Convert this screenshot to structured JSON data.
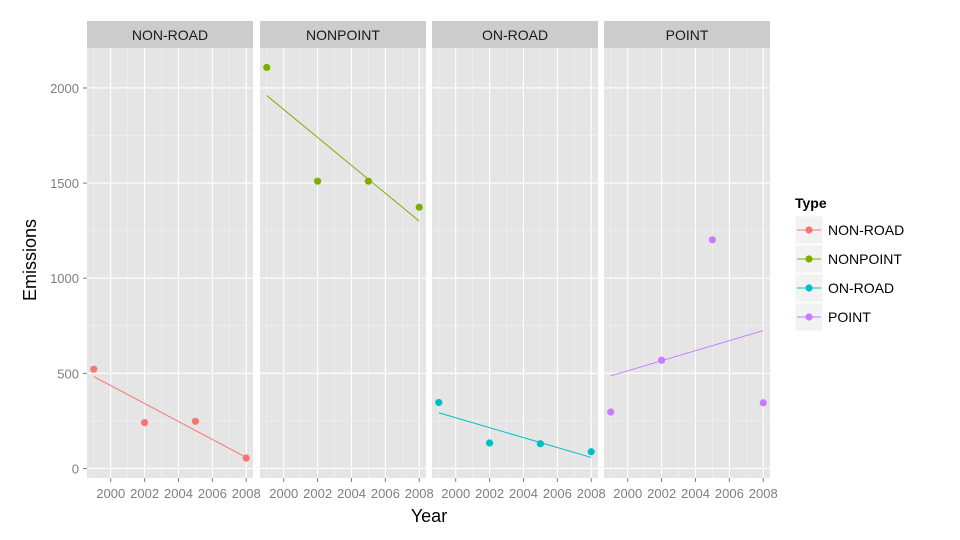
{
  "chart_data": {
    "type": "scatter",
    "facet_by": "Type",
    "xlabel": "Year",
    "ylabel": "Emissions",
    "xlim": [
      1998.6,
      2008.4
    ],
    "ylim": [
      -50,
      2210
    ],
    "x_ticks": [
      2000,
      2002,
      2004,
      2006,
      2008
    ],
    "x_tick_labels": [
      "2000",
      "2002",
      "2004",
      "2006",
      "2008"
    ],
    "y_ticks": [
      0,
      500,
      1000,
      1500,
      2000
    ],
    "y_tick_labels": [
      "0",
      "500",
      "1000",
      "1500",
      "2000"
    ],
    "grid": true,
    "legend": {
      "title": "Type",
      "position": "right"
    },
    "panels": [
      {
        "name": "NON-ROAD",
        "color": "#F8766D",
        "x": [
          1999,
          2002,
          2005,
          2008
        ],
        "y": [
          522,
          241,
          248,
          55
        ],
        "trend": {
          "x": [
            1999,
            2008
          ],
          "y": [
            483,
            58
          ]
        }
      },
      {
        "name": "NONPOINT",
        "color": "#7CAE00",
        "x": [
          1999,
          2002,
          2005,
          2008
        ],
        "y": [
          2108,
          1510,
          1510,
          1373
        ],
        "trend": {
          "x": [
            1999,
            2008
          ],
          "y": [
            1960,
            1300
          ]
        }
      },
      {
        "name": "ON-ROAD",
        "color": "#00BFC4",
        "x": [
          1999,
          2002,
          2005,
          2008
        ],
        "y": [
          347,
          134,
          130,
          88
        ],
        "trend": {
          "x": [
            1999,
            2008
          ],
          "y": [
            293,
            58
          ]
        }
      },
      {
        "name": "POINT",
        "color": "#C77CFF",
        "x": [
          1999,
          2002,
          2005,
          2008
        ],
        "y": [
          297,
          569,
          1202,
          345
        ],
        "trend": {
          "x": [
            1999,
            2008
          ],
          "y": [
            487,
            725
          ]
        }
      }
    ]
  }
}
